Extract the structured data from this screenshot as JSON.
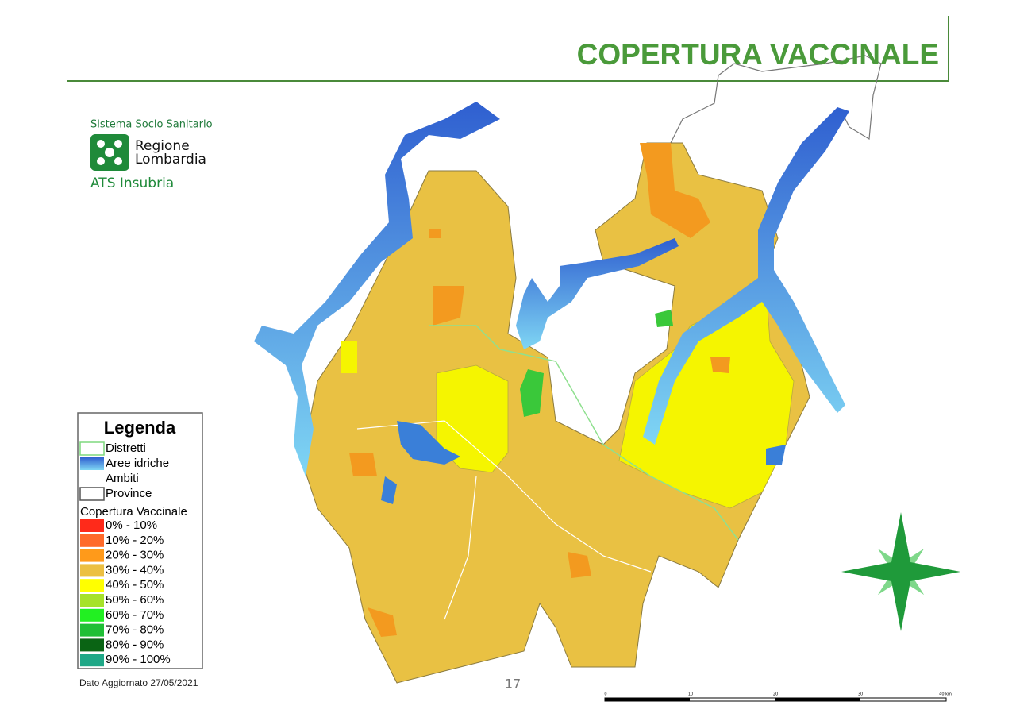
{
  "header": {
    "title": "COPERTURA VACCINALE"
  },
  "logo": {
    "system": "Sistema Socio Sanitario",
    "region_line1": "Regione",
    "region_line2": "Lombardia",
    "agency": "ATS Insubria"
  },
  "legend": {
    "title": "Legenda",
    "layers": [
      {
        "label": "Distretti",
        "color": "#7ed87e"
      },
      {
        "label": "Aree idriche",
        "color": "#3a7fd8"
      },
      {
        "label": "Ambiti",
        "color": "#ffffff"
      },
      {
        "label": "Province",
        "color": "#555555"
      }
    ],
    "coverage_title": "Copertura Vaccinale",
    "classes": [
      {
        "label": "0% - 10%",
        "color": "#ff2a1a"
      },
      {
        "label": "10% - 20%",
        "color": "#ff6a2a"
      },
      {
        "label": "20% - 30%",
        "color": "#ff9a1a"
      },
      {
        "label": "30% - 40%",
        "color": "#ecc043"
      },
      {
        "label": "40% - 50%",
        "color": "#ffff00"
      },
      {
        "label": "50% - 60%",
        "color": "#a6e22a"
      },
      {
        "label": "60% - 70%",
        "color": "#22f022"
      },
      {
        "label": "70% - 80%",
        "color": "#1fbf35"
      },
      {
        "label": "80% - 90%",
        "color": "#0a6414"
      },
      {
        "label": "90% - 100%",
        "color": "#1fa887"
      }
    ]
  },
  "footer": {
    "updated": "Dato Aggiornato 27/05/2021",
    "page": "17"
  },
  "scale_bar": {
    "labels": [
      "0",
      "10",
      "20",
      "30",
      "40 km"
    ]
  }
}
